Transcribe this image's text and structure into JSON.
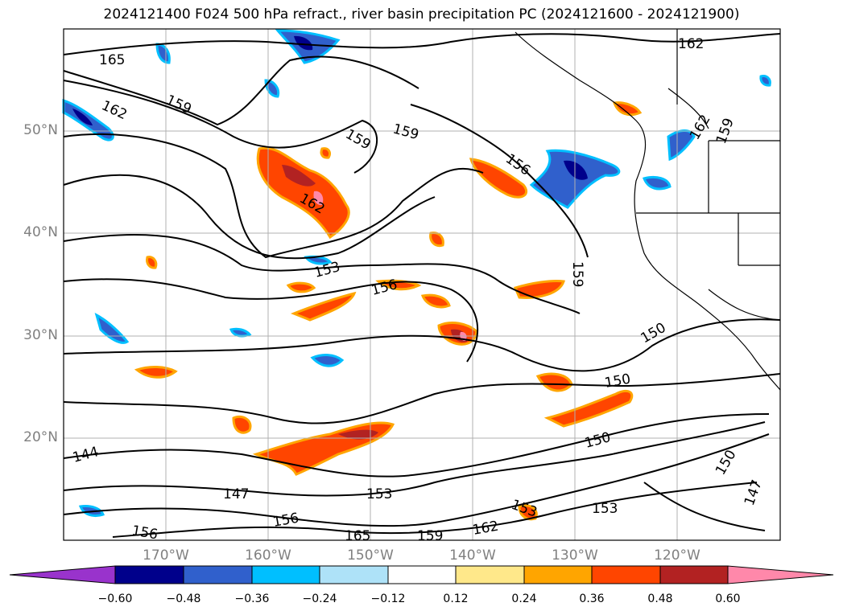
{
  "title": "2024121400 F024 500 hPa refract., river basin precipitation PC (2024121600 - 2024121900)",
  "lat_labels": [
    "50°N",
    "40°N",
    "30°N",
    "20°N"
  ],
  "lon_labels": [
    "170°W",
    "160°W",
    "150°W",
    "140°W",
    "130°W",
    "120°W"
  ],
  "contour_labels": [
    "165",
    "162",
    "159",
    "162",
    "159",
    "159",
    "162",
    "156",
    "153",
    "156",
    "159",
    "150",
    "150",
    "150",
    "150",
    "147",
    "144",
    "147",
    "153",
    "156",
    "156",
    "165",
    "159",
    "162",
    "153",
    "153",
    "162",
    "159"
  ],
  "colorbar": {
    "ticks": [
      "−0.60",
      "−0.48",
      "−0.36",
      "−0.24",
      "−0.12",
      "0.12",
      "0.24",
      "0.36",
      "0.48",
      "0.60"
    ],
    "colors": [
      "#9933cc",
      "#00008b",
      "#3060cc",
      "#00bfff",
      "#aee2f8",
      "#ffffff",
      "#ffe88a",
      "#ffa500",
      "#ff4500",
      "#b22222",
      "#ff88aa"
    ]
  }
}
